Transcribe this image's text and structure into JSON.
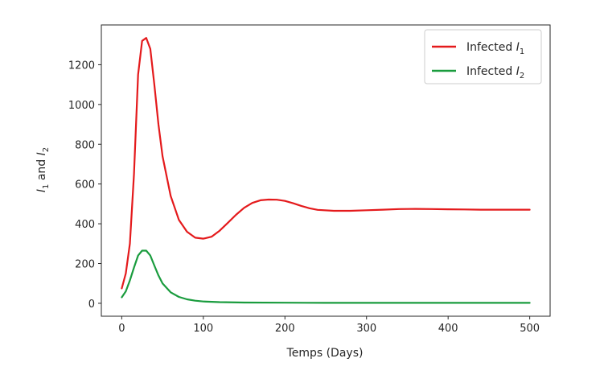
{
  "chart_data": {
    "type": "line",
    "xlabel": "Temps (Days)",
    "ylabel": "I1 and I2",
    "ylabel_parts": {
      "a": "I",
      "a_sub": "1",
      "mid": " and ",
      "b": "I",
      "b_sub": "2"
    },
    "xlim": [
      -25,
      525
    ],
    "ylim": [
      -65,
      1400
    ],
    "xticks": [
      0,
      100,
      200,
      300,
      400,
      500
    ],
    "yticks": [
      0,
      200,
      400,
      600,
      800,
      1000,
      1200
    ],
    "legend_position": "top-right",
    "grid": false,
    "series": [
      {
        "name": "Infected I1",
        "name_main": "Infected ",
        "name_var": "I",
        "name_sub": "1",
        "color": "#e41a1c",
        "x": [
          0,
          5,
          10,
          15,
          20,
          25,
          30,
          35,
          40,
          45,
          50,
          60,
          70,
          80,
          90,
          100,
          110,
          120,
          130,
          140,
          150,
          160,
          170,
          180,
          190,
          200,
          210,
          220,
          230,
          240,
          260,
          280,
          300,
          320,
          340,
          360,
          380,
          400,
          420,
          440,
          460,
          480,
          500
        ],
        "values": [
          75,
          150,
          300,
          650,
          1150,
          1320,
          1335,
          1280,
          1100,
          900,
          740,
          540,
          420,
          360,
          330,
          325,
          335,
          365,
          405,
          445,
          480,
          505,
          518,
          522,
          521,
          515,
          503,
          490,
          478,
          470,
          465,
          465,
          468,
          471,
          474,
          475,
          474,
          473,
          472,
          471,
          471,
          471,
          471
        ]
      },
      {
        "name": "Infected I2",
        "name_main": "Infected ",
        "name_var": "I",
        "name_sub": "2",
        "color": "#1a9c3e",
        "x": [
          0,
          5,
          10,
          15,
          20,
          25,
          30,
          35,
          40,
          45,
          50,
          60,
          70,
          80,
          90,
          100,
          120,
          150,
          200,
          250,
          300,
          400,
          500
        ],
        "values": [
          30,
          60,
          115,
          180,
          240,
          265,
          265,
          240,
          190,
          140,
          100,
          55,
          32,
          20,
          13,
          9,
          6,
          4,
          3,
          2,
          2,
          2,
          2
        ]
      }
    ]
  }
}
